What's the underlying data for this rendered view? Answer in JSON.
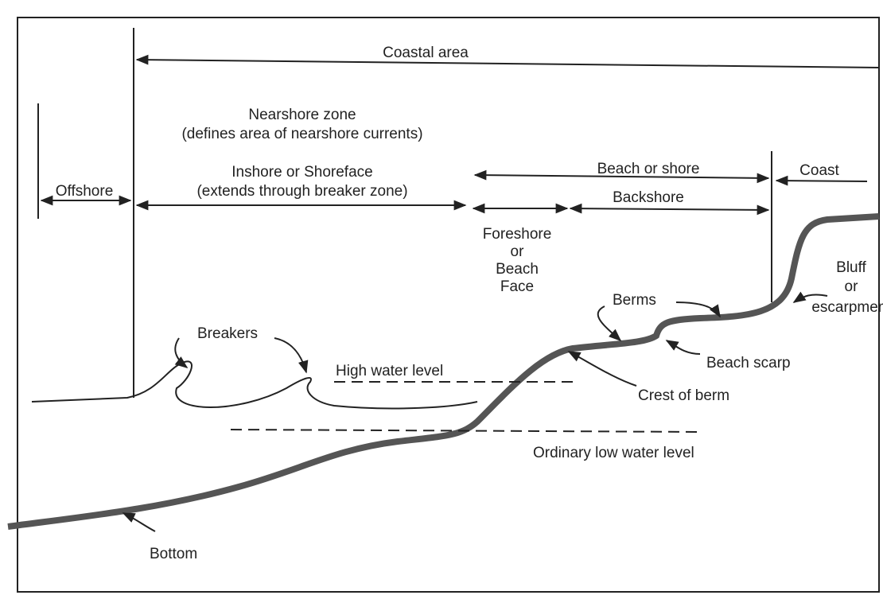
{
  "labels": {
    "coastal_area": "Coastal area",
    "nearshore_zone": "Nearshore zone",
    "nearshore_note": "(defines area of nearshore currents)",
    "inshore": "Inshore or Shoreface",
    "inshore_note": "(extends through breaker zone)",
    "offshore": "Offshore",
    "beach_or_shore": "Beach or shore",
    "coast": "Coast",
    "backshore": "Backshore",
    "foreshore": [
      "Foreshore",
      "or",
      "Beach",
      "Face"
    ],
    "bluff": [
      "Bluff",
      "or",
      "escarpment"
    ],
    "berms": "Berms",
    "breakers": "Breakers",
    "high_water": "High water level",
    "beach_scarp": "Beach scarp",
    "crest_of_berm": "Crest of berm",
    "low_water": "Ordinary low water level",
    "bottom": "Bottom"
  }
}
